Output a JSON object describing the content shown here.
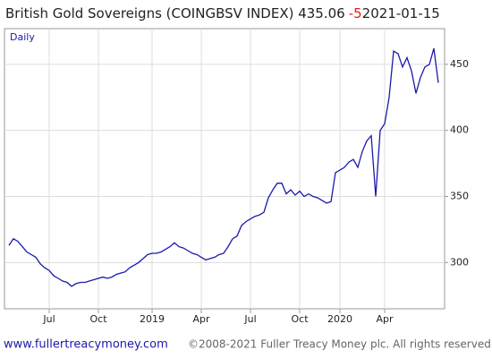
{
  "chart_data": {
    "type": "line",
    "title": "British Gold Sovereigns (COINGBSV INDEX) 435.06",
    "change": "-5",
    "date": "2021-01-15",
    "frequency": "Daily",
    "footer_site": "www.fullertreacymoney.com",
    "footer_copyright": "©2008-2021 Fuller Treacy Money plc. All rights reserved",
    "categories": [
      null,
      null,
      null,
      null,
      null,
      null,
      null,
      null,
      null,
      "Jul",
      null,
      null,
      null,
      null,
      null,
      null,
      null,
      null,
      null,
      null,
      "Oct",
      null,
      null,
      null,
      null,
      null,
      null,
      null,
      null,
      null,
      null,
      null,
      "2019",
      null,
      null,
      null,
      null,
      null,
      null,
      null,
      null,
      null,
      null,
      "Apr",
      null,
      null,
      null,
      null,
      null,
      null,
      null,
      null,
      null,
      null,
      "Jul",
      null,
      null,
      null,
      null,
      null,
      null,
      null,
      null,
      null,
      null,
      "Oct",
      null,
      null,
      null,
      null,
      null,
      null,
      null,
      null,
      "2020",
      null,
      null,
      null,
      null,
      null,
      null,
      null,
      null,
      null,
      "Apr",
      null,
      null,
      null,
      null,
      null,
      null,
      null,
      null,
      null,
      null,
      null,
      null
    ],
    "series": [
      {
        "name": "COINGBSV INDEX",
        "color": "#1a1aaa",
        "values": [
          313,
          318,
          316,
          312,
          308,
          306,
          304,
          299,
          296,
          294,
          290,
          288,
          286,
          285,
          282,
          284,
          285,
          285,
          286,
          287,
          288,
          289,
          288,
          289,
          291,
          292,
          293,
          296,
          298,
          300,
          303,
          306,
          307,
          307,
          308,
          310,
          312,
          315,
          312,
          311,
          309,
          307,
          306,
          304,
          302,
          303,
          304,
          306,
          307,
          312,
          318,
          320,
          328,
          331,
          333,
          335,
          336,
          338,
          349,
          355,
          360,
          360,
          352,
          355,
          351,
          354,
          350,
          352,
          350,
          349,
          347,
          345,
          346,
          368,
          370,
          372,
          376,
          378,
          372,
          384,
          392,
          396,
          350,
          400,
          405,
          425,
          460,
          458,
          448,
          455,
          445,
          428,
          440,
          448,
          450,
          462,
          436
        ]
      }
    ],
    "ylim": [
      265,
      477
    ],
    "yticks": [
      300,
      350,
      400,
      450
    ],
    "grid": true
  }
}
